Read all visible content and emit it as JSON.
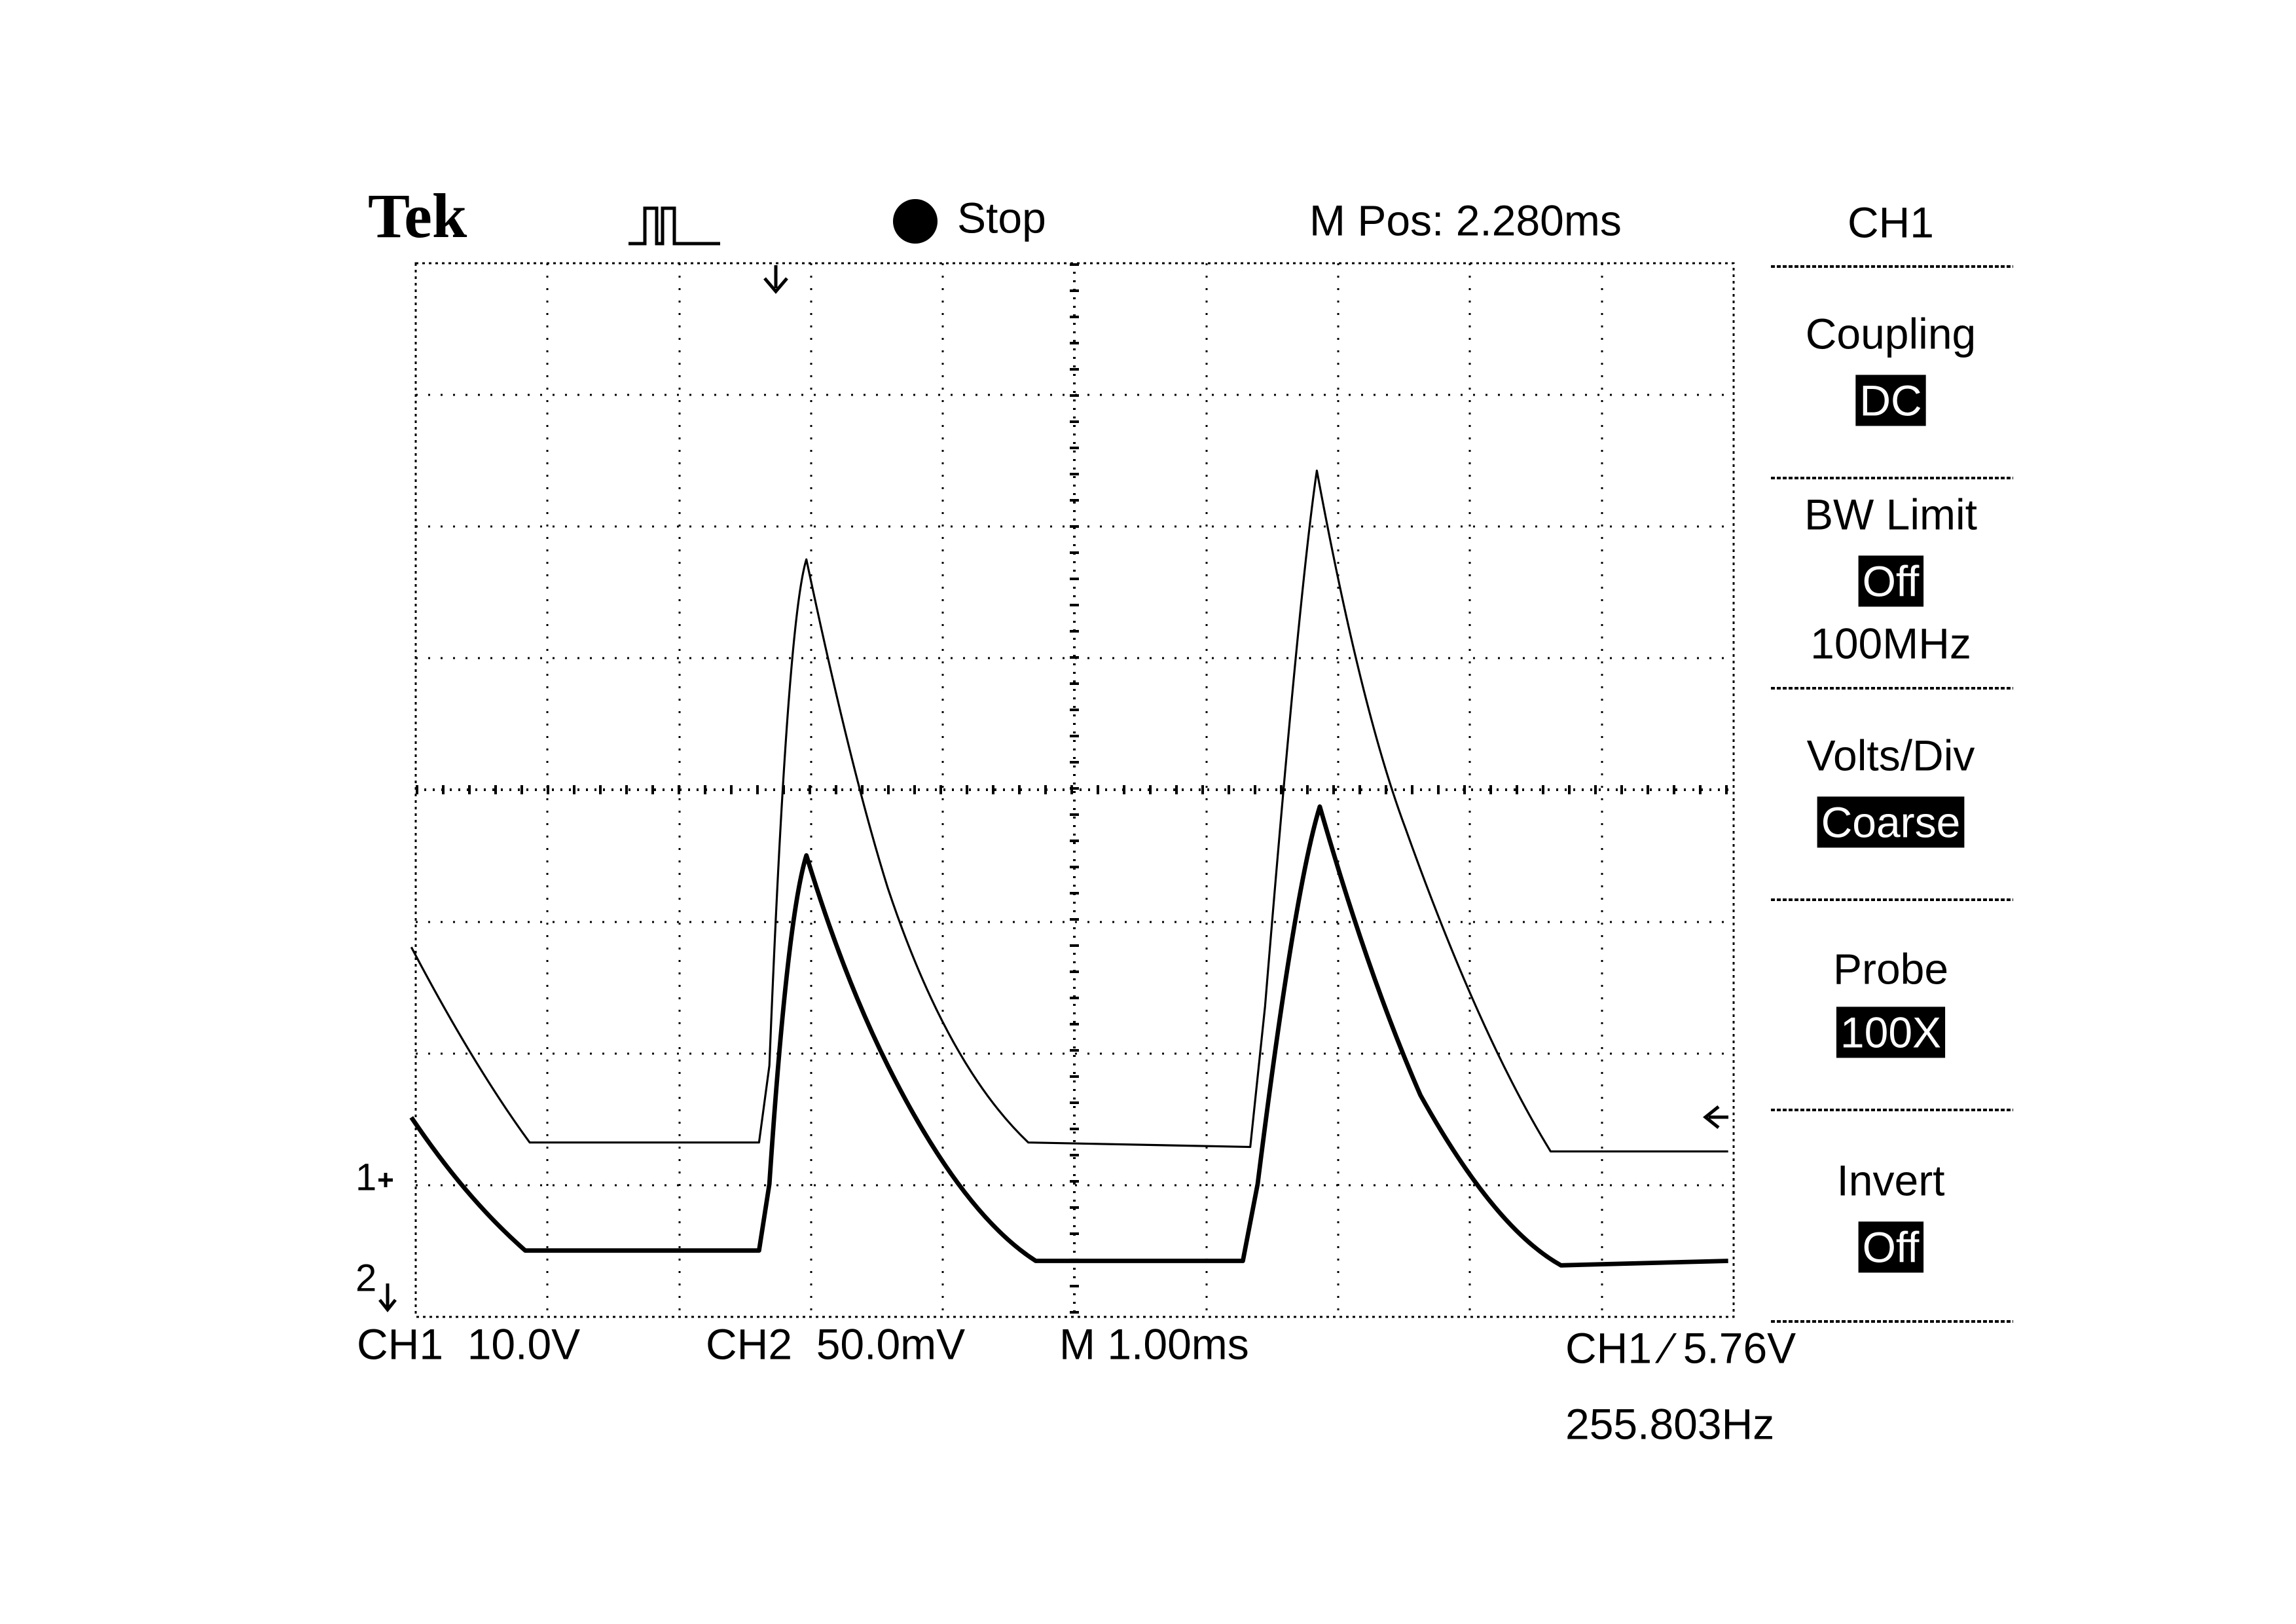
{
  "header": {
    "brand": "Tek",
    "status": "Stop",
    "position": "M Pos: 2.280ms"
  },
  "menu": {
    "title": "CH1",
    "items": [
      {
        "label": "Coupling",
        "value": "DC"
      },
      {
        "label": "BW Limit",
        "value": "Off",
        "extra": "100MHz"
      },
      {
        "label": "Volts/Div",
        "value": "Coarse"
      },
      {
        "label": "Probe",
        "value": "100X"
      },
      {
        "label": "Invert",
        "value": "Off"
      }
    ]
  },
  "markers": {
    "ch1": "1",
    "ch2": "2"
  },
  "footer": {
    "ch1_scale": "CH1  10.0V",
    "ch2_scale": "CH2  50.0mV",
    "timebase": "M 1.00ms",
    "trigger": "CH1 ⁄ 5.76V",
    "frequency": "255.803Hz"
  }
}
